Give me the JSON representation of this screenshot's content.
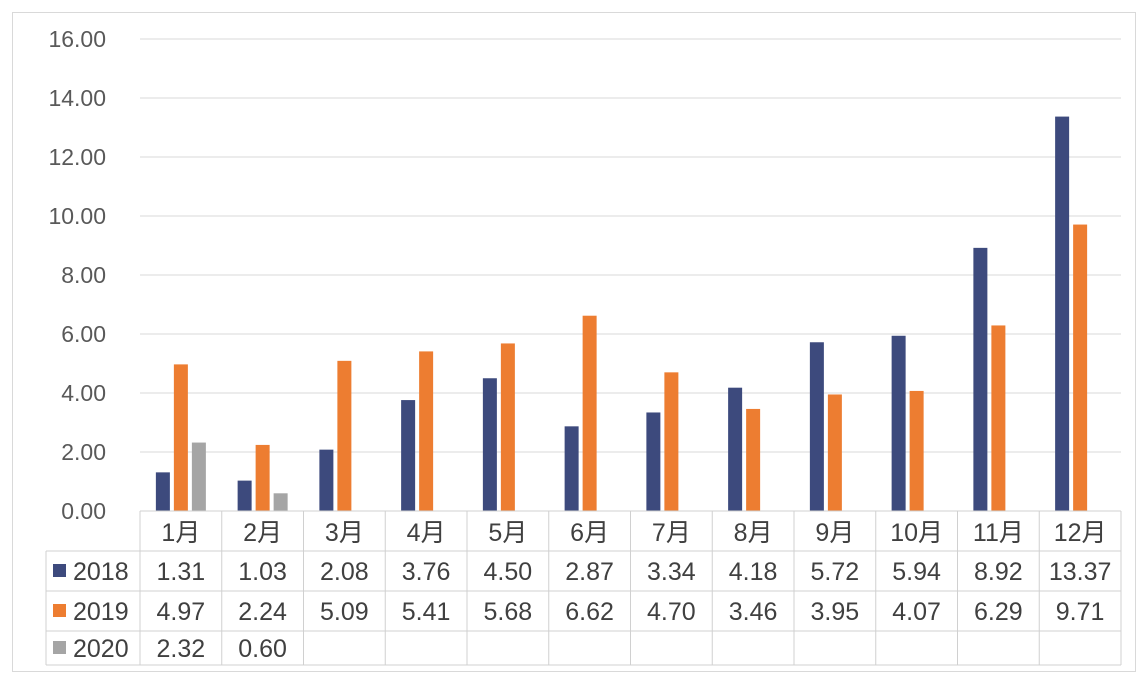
{
  "chart_data": {
    "type": "bar",
    "categories": [
      "1月",
      "2月",
      "3月",
      "4月",
      "5月",
      "6月",
      "7月",
      "8月",
      "9月",
      "10月",
      "11月",
      "12月"
    ],
    "series": [
      {
        "name": "2018",
        "color": "#3d4a7d",
        "values": [
          1.31,
          1.03,
          2.08,
          3.76,
          4.5,
          2.87,
          3.34,
          4.18,
          5.72,
          5.94,
          8.92,
          13.37
        ],
        "labels": [
          "1.31",
          "1.03",
          "2.08",
          "3.76",
          "4.50",
          "2.87",
          "3.34",
          "4.18",
          "5.72",
          "5.94",
          "8.92",
          "13.37"
        ]
      },
      {
        "name": "2019",
        "color": "#ed7d31",
        "values": [
          4.97,
          2.24,
          5.09,
          5.41,
          5.68,
          6.62,
          4.7,
          3.46,
          3.95,
          4.07,
          6.29,
          9.71
        ],
        "labels": [
          "4.97",
          "2.24",
          "5.09",
          "5.41",
          "5.68",
          "6.62",
          "4.70",
          "3.46",
          "3.95",
          "4.07",
          "6.29",
          "9.71"
        ]
      },
      {
        "name": "2020",
        "color": "#a5a5a5",
        "values": [
          2.32,
          0.6,
          null,
          null,
          null,
          null,
          null,
          null,
          null,
          null,
          null,
          null
        ],
        "labels": [
          "2.32",
          "0.60",
          "",
          "",
          "",
          "",
          "",
          "",
          "",
          "",
          "",
          ""
        ]
      }
    ],
    "yticks": [
      "0.00",
      "2.00",
      "4.00",
      "6.00",
      "8.00",
      "10.00",
      "12.00",
      "14.00",
      "16.00"
    ],
    "ylim": [
      0,
      16
    ],
    "grid": true,
    "legend": "data-table-left"
  }
}
